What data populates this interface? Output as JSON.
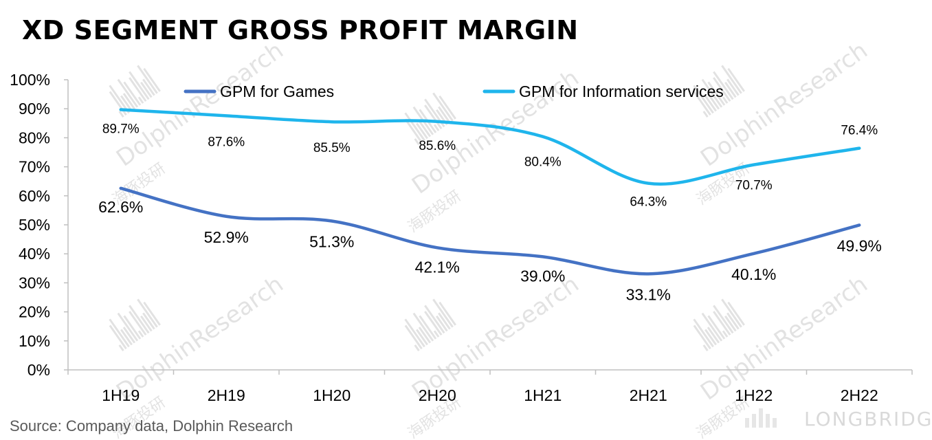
{
  "header": {
    "title": "XD SEGMENT GROSS PROFIT MARGIN"
  },
  "footer": {
    "source": "Source: Company data, Dolphin Research",
    "brand": "LONGBRIDGE"
  },
  "watermark": {
    "text": "DolphinResearch",
    "cn": "海豚投研"
  },
  "colors": {
    "games": "#4472C4",
    "info": "#1FB5EC",
    "axis": "#BFBFBF",
    "text": "#000000"
  },
  "chart_data": {
    "type": "line",
    "title": "XD SEGMENT GROSS PROFIT MARGIN",
    "categories": [
      "1H19",
      "2H19",
      "1H20",
      "2H20",
      "1H21",
      "2H21",
      "1H22",
      "2H22"
    ],
    "series": [
      {
        "name": "GPM for Games",
        "values": [
          62.6,
          52.9,
          51.3,
          42.1,
          39.0,
          33.1,
          40.1,
          49.9
        ],
        "labels": [
          "62.6%",
          "52.9%",
          "51.3%",
          "42.1%",
          "39.0%",
          "33.1%",
          "40.1%",
          "49.9%"
        ],
        "color": "#4472C4"
      },
      {
        "name": "GPM for Information services",
        "values": [
          89.7,
          87.6,
          85.5,
          85.6,
          80.4,
          64.3,
          70.7,
          76.4
        ],
        "labels": [
          "89.7%",
          "87.6%",
          "85.5%",
          "85.6%",
          "80.4%",
          "64.3%",
          "70.7%",
          "76.4%"
        ],
        "color": "#1FB5EC"
      }
    ],
    "yticks": [
      "0%",
      "10%",
      "20%",
      "30%",
      "40%",
      "50%",
      "60%",
      "70%",
      "80%",
      "90%",
      "100%"
    ],
    "ylim": [
      0,
      100
    ],
    "xlabel": "",
    "ylabel": "",
    "grid": false,
    "legend": "top"
  }
}
